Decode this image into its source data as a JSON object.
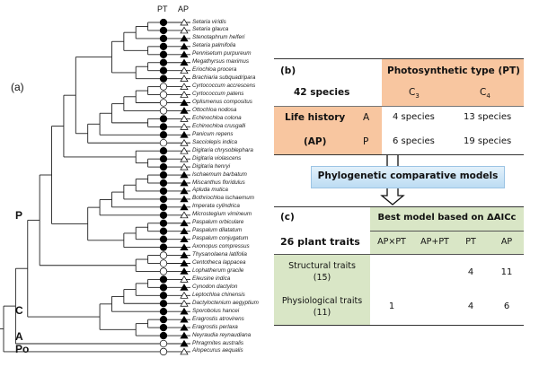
{
  "panel_a": {
    "label": "(a)",
    "column_headers": {
      "pt": "PT",
      "ap": "AP"
    },
    "clade_labels": [
      "P",
      "C",
      "A",
      "Po"
    ],
    "legend_encoding": {
      "pt_filled_circle": "C4",
      "pt_open_circle": "C3",
      "ap_filled_triangle": "P",
      "ap_open_triangle": "A"
    },
    "species": [
      {
        "name": "Setaria viridis",
        "pt": "C4",
        "ap": "A"
      },
      {
        "name": "Setaria glauca",
        "pt": "C4",
        "ap": "A"
      },
      {
        "name": "Stenotaphrum helferi",
        "pt": "C4",
        "ap": "P"
      },
      {
        "name": "Setaria palmifolia",
        "pt": "C4",
        "ap": "P"
      },
      {
        "name": "Pennisetum purpureum",
        "pt": "C4",
        "ap": "P"
      },
      {
        "name": "Megathyrsus maximus",
        "pt": "C4",
        "ap": "P"
      },
      {
        "name": "Eriochloa procera",
        "pt": "C4",
        "ap": "A"
      },
      {
        "name": "Brachiaria subquadripara",
        "pt": "C4",
        "ap": "A"
      },
      {
        "name": "Cyrtococcum accrescens",
        "pt": "C3",
        "ap": "A"
      },
      {
        "name": "Cyrtococcum patens",
        "pt": "C3",
        "ap": "A"
      },
      {
        "name": "Oplismenus compositus",
        "pt": "C3",
        "ap": "P"
      },
      {
        "name": "Ottochloa nodosa",
        "pt": "C3",
        "ap": "P"
      },
      {
        "name": "Echinochloa colona",
        "pt": "C4",
        "ap": "A"
      },
      {
        "name": "Echinochloa crusgalli",
        "pt": "C4",
        "ap": "A"
      },
      {
        "name": "Panicum repens",
        "pt": "C4",
        "ap": "P"
      },
      {
        "name": "Sacciolepis indica",
        "pt": "C3",
        "ap": "A"
      },
      {
        "name": "Digitaria chrysoblephara",
        "pt": "C4",
        "ap": "A"
      },
      {
        "name": "Digitaria violascens",
        "pt": "C4",
        "ap": "A"
      },
      {
        "name": "Digitaria henryi",
        "pt": "C4",
        "ap": "A"
      },
      {
        "name": "Ischaemum barbatum",
        "pt": "C4",
        "ap": "P"
      },
      {
        "name": "Miscanthus floridulus",
        "pt": "C4",
        "ap": "P"
      },
      {
        "name": "Apluda mutica",
        "pt": "C4",
        "ap": "P"
      },
      {
        "name": "Bothriochloa ischaemum",
        "pt": "C4",
        "ap": "P"
      },
      {
        "name": "Imperata cylindrica",
        "pt": "C4",
        "ap": "P"
      },
      {
        "name": "Microstegium vimineum",
        "pt": "C4",
        "ap": "A"
      },
      {
        "name": "Paspalum orbiculare",
        "pt": "C4",
        "ap": "P"
      },
      {
        "name": "Paspalum dilatatum",
        "pt": "C4",
        "ap": "P"
      },
      {
        "name": "Paspalum conjugatum",
        "pt": "C4",
        "ap": "P"
      },
      {
        "name": "Axonopus compressus",
        "pt": "C4",
        "ap": "P"
      },
      {
        "name": "Thysanolaena latifolia",
        "pt": "C3",
        "ap": "P"
      },
      {
        "name": "Centotheca lappacea",
        "pt": "C3",
        "ap": "P"
      },
      {
        "name": "Lophatherum gracile",
        "pt": "C3",
        "ap": "P"
      },
      {
        "name": "Eleusine indica",
        "pt": "C4",
        "ap": "A"
      },
      {
        "name": "Cynodon dactylon",
        "pt": "C4",
        "ap": "P"
      },
      {
        "name": "Leptochloa chinensis",
        "pt": "C4",
        "ap": "A"
      },
      {
        "name": "Dactyloctenium aegyptium",
        "pt": "C4",
        "ap": "A"
      },
      {
        "name": "Sporobolus hancei",
        "pt": "C4",
        "ap": "P"
      },
      {
        "name": "Eragrostis atrovirens",
        "pt": "C4",
        "ap": "P"
      },
      {
        "name": "Eragrostis perlaxa",
        "pt": "C4",
        "ap": "P"
      },
      {
        "name": "Neyraudia reynaudiana",
        "pt": "C4",
        "ap": "P"
      },
      {
        "name": "Phragmites australis",
        "pt": "C3",
        "ap": "P"
      },
      {
        "name": "Alopecurus aequalis",
        "pt": "C3",
        "ap": "A"
      }
    ],
    "tree": [
      [
        [
          [
            [
              [
                [
                  [
                    [
                      [
                        [
                          0,
                          1
                        ],
                        2
                      ],
                      [
                        3,
                        4
                      ]
                    ],
                    [
                      [
                        5,
                        6
                      ],
                      7
                    ]
                  ],
                  [
                    [
                      [
                        [
                          [
                            [
                              8,
                              9
                            ],
                            10
                          ],
                          11
                        ],
                        [
                          12,
                          13
                        ]
                      ],
                      14
                    ],
                    15
                  ]
                ],
                [
                  16,
                  [
                    17,
                    18
                  ]
                ]
              ],
              [
                [
                  [
                    [
                      [
                        [
                          19,
                          20
                        ],
                        21
                      ],
                      22
                    ],
                    23
                  ],
                  24
                ],
                [
                  [
                    [
                      25,
                      26
                    ],
                    27
                  ],
                  28
                ]
              ]
            ],
            [
              [
                29,
                30
              ],
              31
            ]
          ],
          [
            [
              [
                [
                  [
                    32,
                    33
                  ],
                  34
                ],
                35
              ],
              36
            ],
            [
              [
                37,
                38
              ],
              39
            ]
          ]
        ],
        40
      ],
      41
    ]
  },
  "panel_b": {
    "label": "(b)",
    "species_count": "42 species",
    "pt_header": "Photosynthetic type (PT)",
    "pt_columns": [
      {
        "main": "C",
        "sub": "3"
      },
      {
        "main": "C",
        "sub": "4"
      }
    ],
    "ap_header_line1": "Life history",
    "ap_header_line2": "(AP)",
    "rows": [
      {
        "code": "A",
        "c3": "4 species",
        "c4": "13 species"
      },
      {
        "code": "P",
        "c3": "6 species",
        "c4": "19 species"
      }
    ],
    "colors": {
      "header_fill": "#f8c6a0"
    }
  },
  "method_box": {
    "label": "Phylogenetic comparative models",
    "fill": "#cfe6f7"
  },
  "panel_c": {
    "label": "(c)",
    "header": "Best model based on ΔAICc",
    "row_header": "26 plant traits",
    "columns": [
      "AP×PT",
      "AP+PT",
      "PT",
      "AP"
    ],
    "rows": [
      {
        "line1": "Structural traits",
        "line2": "(15)",
        "values": [
          "",
          "",
          "4",
          "11"
        ]
      },
      {
        "line1": "Physiological traits",
        "line2": "(11)",
        "values": [
          "1",
          "",
          "4",
          "6"
        ]
      }
    ],
    "colors": {
      "header_fill": "#d9e6c6"
    }
  }
}
